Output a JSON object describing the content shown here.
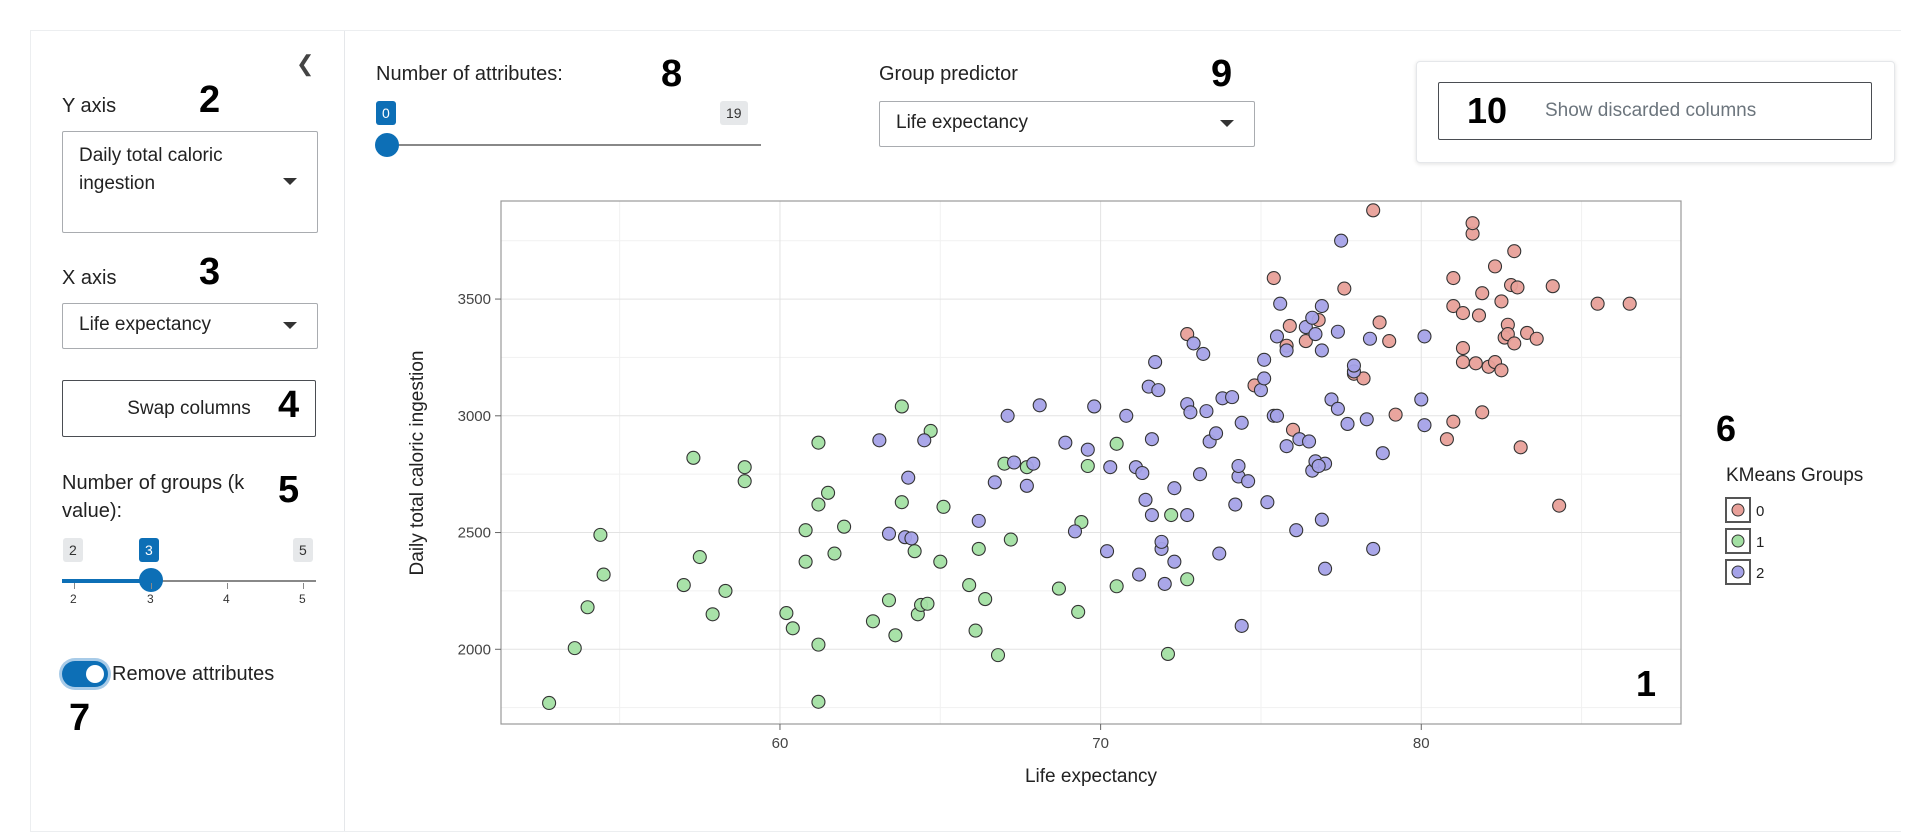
{
  "sidebar": {
    "y_axis": {
      "label": "Y axis",
      "value": "Daily total caloric ingestion"
    },
    "x_axis": {
      "label": "X axis",
      "value": "Life expectancy"
    },
    "swap_button": "Swap columns",
    "groups": {
      "label": "Number of groups (k value):",
      "min": "2",
      "max": "5",
      "value": "3",
      "ticks": [
        "2",
        "3",
        "4",
        "5"
      ]
    },
    "remove_attributes": {
      "label": "Remove attributes",
      "checked": true
    }
  },
  "main": {
    "attributes": {
      "label": "Number of attributes:",
      "min_value": "0",
      "max_value": "19"
    },
    "group_predictor": {
      "label": "Group predictor",
      "value": "Life expectancy"
    },
    "discarded_button": "Show discarded columns"
  },
  "markers": [
    "1",
    "2",
    "3",
    "4",
    "5",
    "6",
    "7",
    "8",
    "9",
    "10"
  ],
  "colors": {
    "accent": "#0d6fb6",
    "group0": "#e8a099",
    "group1": "#a3e0a3",
    "group2": "#a5a2e8"
  },
  "chart_data": {
    "type": "scatter",
    "xlabel": "Life expectancy",
    "ylabel": "Daily total caloric ingestion",
    "xlim": [
      51.3,
      88.1
    ],
    "ylim": [
      1680,
      3920
    ],
    "xticks": [
      60,
      70,
      80
    ],
    "yticks": [
      2000,
      2500,
      3000,
      3500
    ],
    "grid": true,
    "legend": {
      "title": "KMeans Groups",
      "position": "right",
      "entries": [
        "0",
        "1",
        "2"
      ]
    },
    "series": [
      {
        "name": "0",
        "points": [
          [
            72.7,
            3350
          ],
          [
            75.4,
            3590
          ],
          [
            75.8,
            3300
          ],
          [
            75.9,
            3385
          ],
          [
            76.4,
            3320
          ],
          [
            77.6,
            3545
          ],
          [
            77.9,
            3180
          ],
          [
            78.2,
            3160
          ],
          [
            78.5,
            3880
          ],
          [
            78.7,
            3400
          ],
          [
            79.0,
            3320
          ],
          [
            79.2,
            3005
          ],
          [
            80.8,
            2900
          ],
          [
            81.0,
            2975
          ],
          [
            81.0,
            3590
          ],
          [
            81.0,
            3470
          ],
          [
            81.3,
            3440
          ],
          [
            81.3,
            3290
          ],
          [
            81.3,
            3230
          ],
          [
            81.6,
            3780
          ],
          [
            81.6,
            3825
          ],
          [
            81.7,
            3225
          ],
          [
            81.8,
            3430
          ],
          [
            81.9,
            3015
          ],
          [
            81.9,
            3525
          ],
          [
            82.1,
            3210
          ],
          [
            82.3,
            3640
          ],
          [
            82.3,
            3230
          ],
          [
            82.5,
            3490
          ],
          [
            82.5,
            3195
          ],
          [
            82.6,
            3335
          ],
          [
            82.7,
            3390
          ],
          [
            82.7,
            3350
          ],
          [
            82.8,
            3560
          ],
          [
            82.9,
            3310
          ],
          [
            82.9,
            3705
          ],
          [
            83.0,
            3550
          ],
          [
            83.1,
            2865
          ],
          [
            83.3,
            3355
          ],
          [
            83.6,
            3330
          ],
          [
            84.1,
            3555
          ],
          [
            84.3,
            2615
          ],
          [
            85.5,
            3480
          ],
          [
            86.5,
            3480
          ],
          [
            76.0,
            2940
          ],
          [
            76.8,
            3410
          ],
          [
            74.8,
            3130
          ]
        ]
      },
      {
        "name": "1",
        "points": [
          [
            52.8,
            1770
          ],
          [
            53.6,
            2005
          ],
          [
            54.0,
            2180
          ],
          [
            54.4,
            2490
          ],
          [
            54.5,
            2320
          ],
          [
            57.0,
            2275
          ],
          [
            57.3,
            2820
          ],
          [
            57.5,
            2395
          ],
          [
            57.9,
            2150
          ],
          [
            58.3,
            2250
          ],
          [
            58.9,
            2780
          ],
          [
            58.9,
            2720
          ],
          [
            60.2,
            2155
          ],
          [
            60.4,
            2090
          ],
          [
            60.8,
            2375
          ],
          [
            60.8,
            2510
          ],
          [
            61.2,
            1775
          ],
          [
            61.2,
            2020
          ],
          [
            61.2,
            2885
          ],
          [
            61.2,
            2620
          ],
          [
            61.5,
            2670
          ],
          [
            61.7,
            2410
          ],
          [
            62.0,
            2525
          ],
          [
            62.9,
            2120
          ],
          [
            63.4,
            2210
          ],
          [
            63.6,
            2060
          ],
          [
            63.8,
            2630
          ],
          [
            63.8,
            3040
          ],
          [
            64.2,
            2420
          ],
          [
            64.3,
            2150
          ],
          [
            64.4,
            2190
          ],
          [
            64.6,
            2195
          ],
          [
            64.7,
            2935
          ],
          [
            65.0,
            2375
          ],
          [
            65.1,
            2610
          ],
          [
            65.9,
            2275
          ],
          [
            66.1,
            2080
          ],
          [
            66.2,
            2430
          ],
          [
            66.4,
            2215
          ],
          [
            66.8,
            1975
          ],
          [
            67.0,
            2795
          ],
          [
            67.2,
            2470
          ],
          [
            67.7,
            2780
          ],
          [
            68.7,
            2260
          ],
          [
            69.3,
            2160
          ],
          [
            69.4,
            2545
          ],
          [
            69.6,
            2785
          ],
          [
            70.5,
            2270
          ],
          [
            70.5,
            2880
          ],
          [
            72.1,
            1980
          ],
          [
            72.2,
            2575
          ],
          [
            72.7,
            2300
          ]
        ]
      },
      {
        "name": "2",
        "points": [
          [
            63.1,
            2895
          ],
          [
            63.4,
            2495
          ],
          [
            63.9,
            2480
          ],
          [
            64.0,
            2735
          ],
          [
            64.1,
            2475
          ],
          [
            64.5,
            2895
          ],
          [
            66.2,
            2550
          ],
          [
            66.7,
            2715
          ],
          [
            67.1,
            3000
          ],
          [
            67.3,
            2800
          ],
          [
            67.7,
            2700
          ],
          [
            67.9,
            2795
          ],
          [
            68.1,
            3045
          ],
          [
            68.9,
            2885
          ],
          [
            69.2,
            2505
          ],
          [
            69.6,
            2855
          ],
          [
            69.8,
            3040
          ],
          [
            70.2,
            2420
          ],
          [
            70.3,
            2780
          ],
          [
            70.8,
            3000
          ],
          [
            71.1,
            2780
          ],
          [
            71.2,
            2320
          ],
          [
            71.3,
            2755
          ],
          [
            71.4,
            2640
          ],
          [
            71.5,
            3125
          ],
          [
            71.6,
            2575
          ],
          [
            71.6,
            2900
          ],
          [
            71.7,
            3230
          ],
          [
            71.8,
            3110
          ],
          [
            71.9,
            2430
          ],
          [
            71.9,
            2460
          ],
          [
            72.0,
            2280
          ],
          [
            72.3,
            2375
          ],
          [
            72.3,
            2690
          ],
          [
            72.7,
            3050
          ],
          [
            72.7,
            2575
          ],
          [
            72.8,
            3015
          ],
          [
            72.9,
            3310
          ],
          [
            73.1,
            2750
          ],
          [
            73.2,
            3265
          ],
          [
            73.3,
            3020
          ],
          [
            73.4,
            2890
          ],
          [
            73.6,
            2925
          ],
          [
            73.7,
            2410
          ],
          [
            73.8,
            3075
          ],
          [
            74.1,
            3080
          ],
          [
            74.2,
            2620
          ],
          [
            74.3,
            2740
          ],
          [
            74.3,
            2785
          ],
          [
            74.4,
            2100
          ],
          [
            74.4,
            2970
          ],
          [
            74.6,
            2720
          ],
          [
            75.0,
            3110
          ],
          [
            75.1,
            3240
          ],
          [
            75.1,
            3160
          ],
          [
            75.2,
            2630
          ],
          [
            75.4,
            3000
          ],
          [
            75.5,
            3340
          ],
          [
            75.6,
            3480
          ],
          [
            75.8,
            2870
          ],
          [
            75.8,
            3280
          ],
          [
            76.1,
            2510
          ],
          [
            76.2,
            2900
          ],
          [
            76.4,
            3380
          ],
          [
            76.5,
            2890
          ],
          [
            76.6,
            3420
          ],
          [
            76.6,
            2765
          ],
          [
            76.7,
            3350
          ],
          [
            76.7,
            2805
          ],
          [
            76.9,
            3280
          ],
          [
            76.9,
            3470
          ],
          [
            76.9,
            2555
          ],
          [
            77.0,
            2795
          ],
          [
            77.0,
            2345
          ],
          [
            77.2,
            3070
          ],
          [
            77.4,
            3360
          ],
          [
            77.4,
            3030
          ],
          [
            77.5,
            3750
          ],
          [
            77.7,
            2965
          ],
          [
            77.9,
            3190
          ],
          [
            78.3,
            2985
          ],
          [
            78.4,
            3330
          ],
          [
            78.5,
            2430
          ],
          [
            78.8,
            2840
          ],
          [
            80.1,
            3340
          ],
          [
            80.1,
            2960
          ],
          [
            80.0,
            3070
          ],
          [
            77.9,
            3215
          ],
          [
            76.8,
            2785
          ],
          [
            75.5,
            3000
          ]
        ]
      }
    ]
  }
}
